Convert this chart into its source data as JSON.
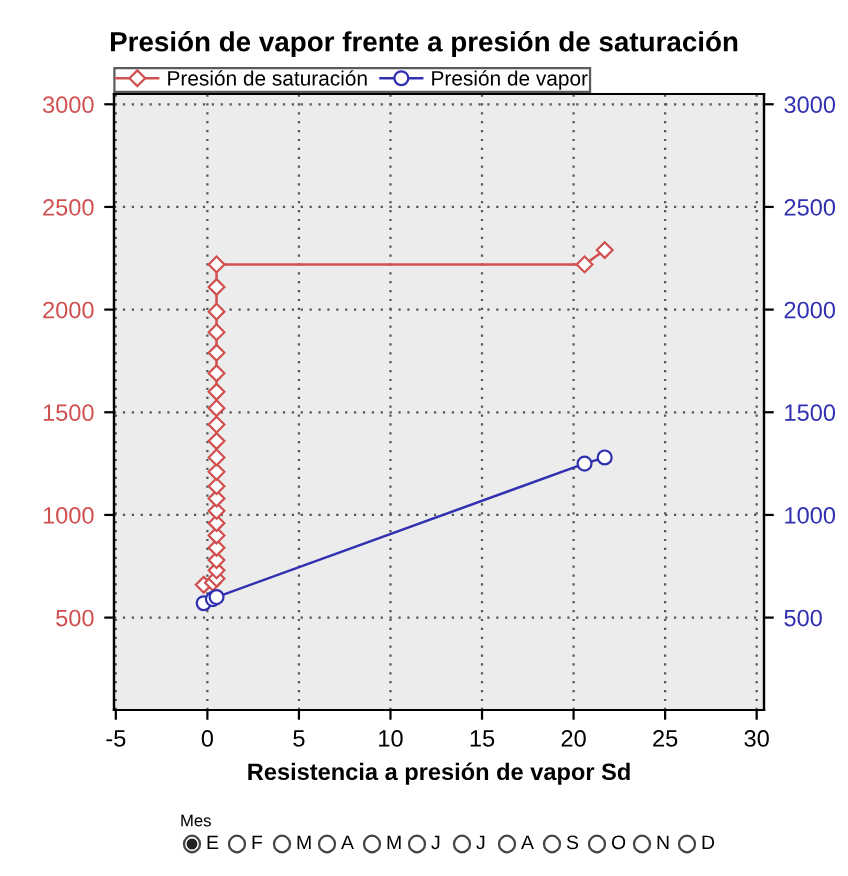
{
  "chart_data": {
    "type": "line",
    "title": "Presión de vapor frente a presión de saturación",
    "xlabel": "Resistencia a presión de vapor Sd",
    "xlim": [
      -5.1,
      30.4
    ],
    "xticks": [
      -5,
      0,
      5,
      10,
      15,
      20,
      25,
      30
    ],
    "ylim": [
      50,
      3050
    ],
    "yticks": [
      500,
      1000,
      1500,
      2000,
      2500,
      3000
    ],
    "y2lim": [
      50,
      3050
    ],
    "y2ticks": [
      500,
      1000,
      1500,
      2000,
      2500,
      3000
    ],
    "grid": true,
    "legend": "top",
    "line_style": "solid",
    "series": [
      {
        "name": "Presión de saturación",
        "color": "#d05050",
        "marker": "diamond",
        "axis": "y",
        "x": [
          -0.2,
          0.3,
          0.5,
          0.5,
          0.5,
          0.5,
          0.5,
          0.5,
          0.5,
          0.5,
          0.5,
          0.5,
          0.5,
          0.5,
          0.5,
          0.5,
          0.5,
          0.5,
          0.5,
          0.5,
          0.5,
          0.5,
          0.5,
          20.6,
          21.7
        ],
        "values": [
          660,
          670,
          690,
          730,
          780,
          840,
          900,
          960,
          1020,
          1080,
          1140,
          1210,
          1280,
          1360,
          1440,
          1520,
          1600,
          1690,
          1790,
          1890,
          1990,
          2110,
          2220,
          2220,
          2290
        ]
      },
      {
        "name": "Presión de vapor",
        "color": "#3030b0",
        "marker": "circle",
        "axis": "y2",
        "x": [
          -0.2,
          0.3,
          0.5,
          20.6,
          21.7
        ],
        "values": [
          570,
          590,
          600,
          1250,
          1280
        ]
      }
    ],
    "annotations": [
      "Mes",
      "E",
      "F",
      "M",
      "A",
      "M",
      "J",
      "J",
      "A",
      "S",
      "O",
      "N",
      "D"
    ]
  }
}
